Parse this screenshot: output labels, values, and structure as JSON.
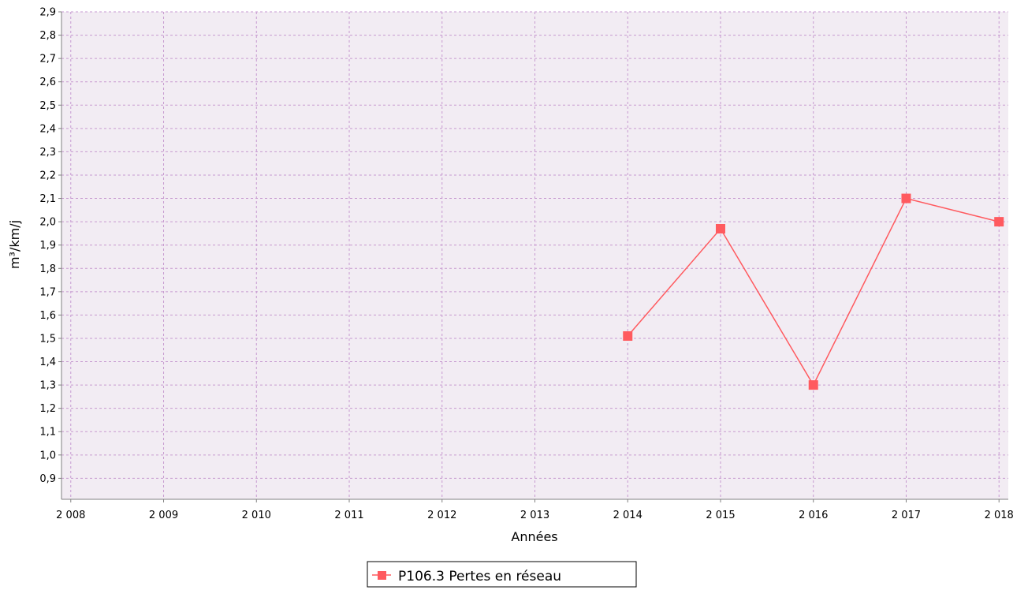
{
  "chart_data": {
    "type": "line",
    "xlabel": "Années",
    "ylabel": "m³/km/j",
    "x_ticks": [
      "2 008",
      "2 009",
      "2 010",
      "2 011",
      "2 012",
      "2 013",
      "2 014",
      "2 015",
      "2 016",
      "2 017",
      "2 018"
    ],
    "x_tick_values": [
      2008,
      2009,
      2010,
      2011,
      2012,
      2013,
      2014,
      2015,
      2016,
      2017,
      2018
    ],
    "y_ticks": [
      "0,9",
      "1,0",
      "1,1",
      "1,2",
      "1,3",
      "1,4",
      "1,5",
      "1,6",
      "1,7",
      "1,8",
      "1,9",
      "2,0",
      "2,1",
      "2,2",
      "2,3",
      "2,4",
      "2,5",
      "2,6",
      "2,7",
      "2,8",
      "2,9"
    ],
    "y_tick_values": [
      0.9,
      1.0,
      1.1,
      1.2,
      1.3,
      1.4,
      1.5,
      1.6,
      1.7,
      1.8,
      1.9,
      2.0,
      2.1,
      2.2,
      2.3,
      2.4,
      2.5,
      2.6,
      2.7,
      2.8,
      2.9
    ],
    "xlim": [
      2007.9,
      2018.1
    ],
    "ylim": [
      0.81,
      2.9
    ],
    "grid": true,
    "legend_position": "bottom-center",
    "series": [
      {
        "name": "P106.3 Pertes en réseau",
        "color": "#ff5a5f",
        "marker": "square",
        "x": [
          2014,
          2015,
          2016,
          2017,
          2018
        ],
        "y": [
          1.51,
          1.97,
          1.3,
          2.1,
          2.0
        ]
      }
    ],
    "colors": {
      "plot_background": "#f2ecf3",
      "grid": "#c79ad0",
      "axis": "#808080"
    }
  }
}
